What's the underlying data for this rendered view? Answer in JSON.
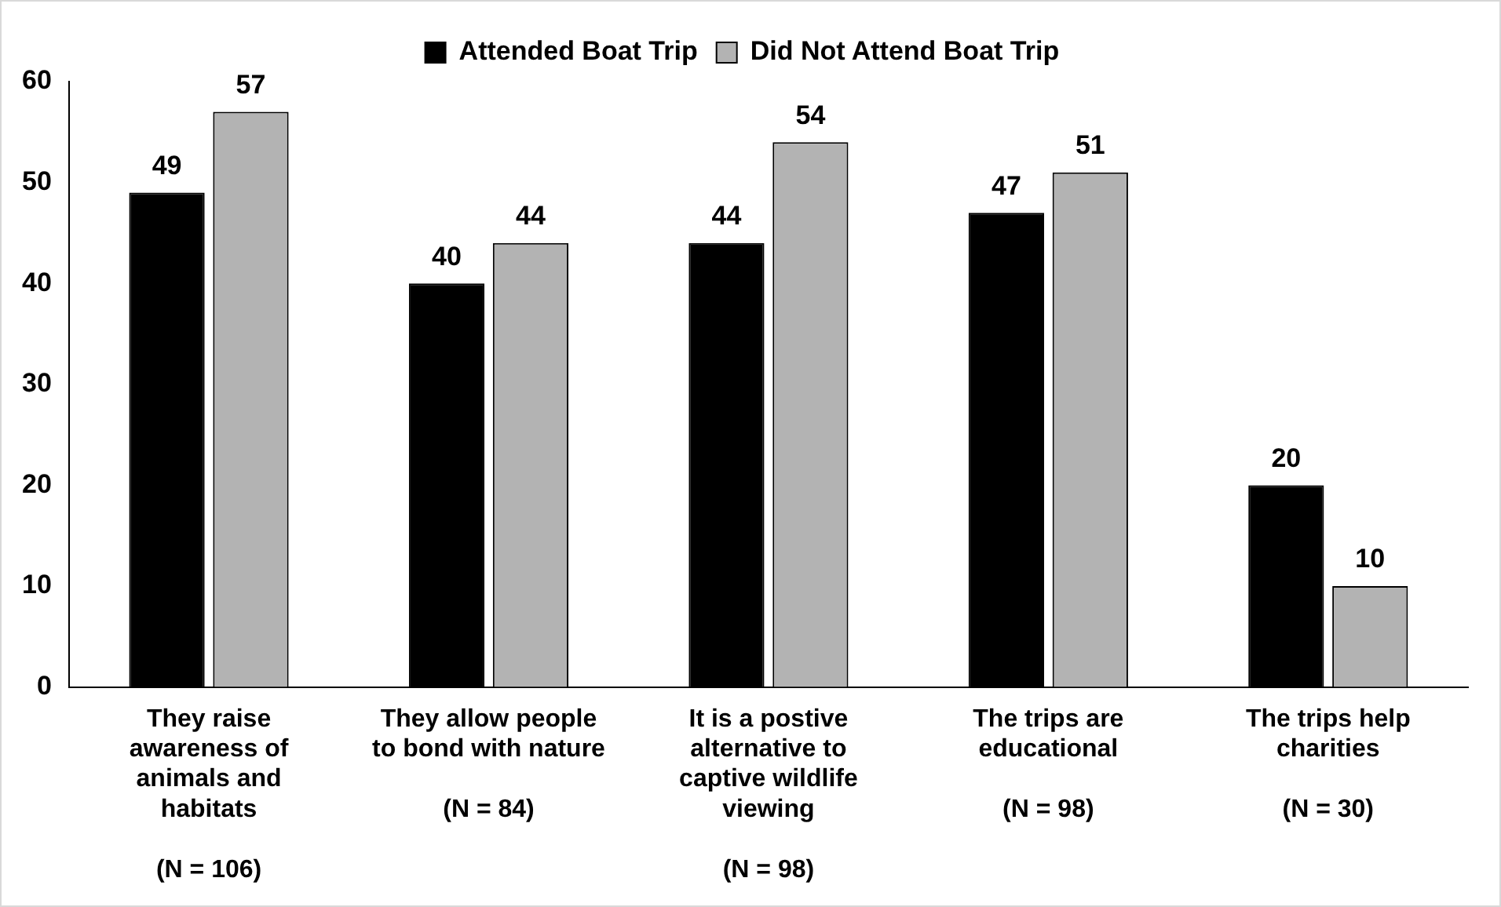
{
  "chart_data": {
    "type": "bar",
    "categories": [
      "They raise awareness of animals and habitats\n(N = 106)",
      "They allow people to bond with nature\n(N = 84)",
      "It is a postive alternative to captive wildlife viewing\n(N = 98)",
      "The trips are educational\n(N = 98)",
      "The trips help charities\n(N = 30)"
    ],
    "series": [
      {
        "name": "Attended Boat Trip",
        "color": "#000000",
        "values": [
          49,
          40,
          44,
          47,
          20
        ]
      },
      {
        "name": "Did Not Attend Boat Trip",
        "color": "#b3b3b3",
        "values": [
          57,
          44,
          54,
          51,
          10
        ]
      }
    ],
    "ylim": [
      0,
      60
    ],
    "yticks": [
      0,
      10,
      20,
      30,
      40,
      50,
      60
    ],
    "grid": false,
    "legend": "top",
    "data_labels": true
  }
}
